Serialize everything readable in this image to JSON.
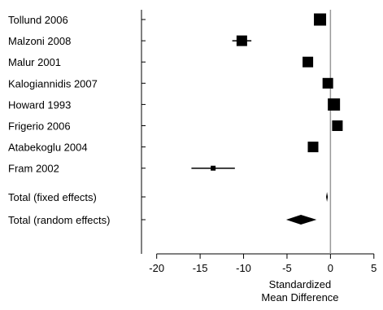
{
  "chart_data": {
    "type": "forest",
    "xlabel": [
      "Standardized",
      "Mean Difference"
    ],
    "xlim": [
      -21,
      5.3
    ],
    "xticks": [
      -20,
      -15,
      -10,
      -5,
      0,
      5
    ],
    "xtick_labels": [
      "-20",
      "-15",
      "-10",
      "-5",
      "0",
      "5"
    ],
    "reference_line": 0,
    "studies": [
      {
        "label": "Tollund 2006",
        "estimate": -1.2,
        "ci": [
          -1.6,
          -0.8
        ],
        "weight": "large"
      },
      {
        "label": "Malzoni 2008",
        "estimate": -10.2,
        "ci": [
          -11.3,
          -9.1
        ],
        "weight": "medium"
      },
      {
        "label": "Malur 2001",
        "estimate": -2.6,
        "ci": [
          -3.0,
          -2.2
        ],
        "weight": "medium"
      },
      {
        "label": "Kalogiannidis 2007",
        "estimate": -0.3,
        "ci": [
          -0.7,
          0.1
        ],
        "weight": "medium"
      },
      {
        "label": "Howard 1993",
        "estimate": 0.4,
        "ci": [
          -0.1,
          0.9
        ],
        "weight": "large"
      },
      {
        "label": "Frigerio 2006",
        "estimate": 0.8,
        "ci": [
          0.4,
          1.2
        ],
        "weight": "medium"
      },
      {
        "label": "Atabekoglu 2004",
        "estimate": -2.0,
        "ci": [
          -2.4,
          -1.6
        ],
        "weight": "medium"
      },
      {
        "label": "Fram 2002",
        "estimate": -13.5,
        "ci": [
          -16.0,
          -11.0
        ],
        "weight": "small"
      }
    ],
    "pooled": [
      {
        "label": "Total (fixed effects)",
        "estimate": -0.4,
        "ci": [
          -0.5,
          -0.3
        ]
      },
      {
        "label": "Total (random effects)",
        "estimate": -3.4,
        "ci": [
          -5.1,
          -1.6
        ]
      }
    ]
  }
}
